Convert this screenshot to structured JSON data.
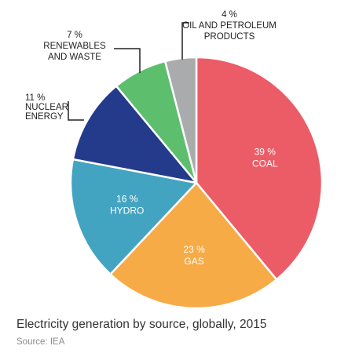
{
  "chart_data": {
    "type": "pie",
    "title": "Electricity generation by source, globally, 2015",
    "source": "Source: IEA",
    "slices": [
      {
        "percent_label": "39 %",
        "name": "COAL",
        "value": 39,
        "color": "#ec5c67",
        "label_inside": true
      },
      {
        "percent_label": "23 %",
        "name": "GAS",
        "value": 23,
        "color": "#f6ab47",
        "label_inside": true
      },
      {
        "percent_label": "16 %",
        "name": "HYDRO",
        "value": 16,
        "color": "#43a4c2",
        "label_inside": true
      },
      {
        "percent_label": "11 %",
        "name_lines": [
          "NUCLEAR",
          "ENERGY"
        ],
        "value": 11,
        "color": "#243b8c",
        "label_inside": false
      },
      {
        "percent_label": "7 %",
        "name_lines": [
          "RENEWABLES",
          "AND WASTE"
        ],
        "value": 7,
        "color": "#5dbe6e",
        "label_inside": false
      },
      {
        "percent_label": "4 %",
        "name_lines": [
          "OIL AND PETROLEUM",
          "PRODUCTS"
        ],
        "value": 4,
        "color": "#a9abad",
        "label_inside": false
      }
    ]
  }
}
